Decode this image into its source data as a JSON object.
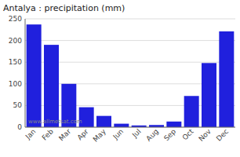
{
  "chart_data": {
    "type": "bar",
    "title": "Antalya : precipitation (mm)",
    "categories": [
      "Jan",
      "Feb",
      "Mar",
      "Apr",
      "May",
      "Jun",
      "Jul",
      "Aug",
      "Sep",
      "Oct",
      "Nov",
      "Dec"
    ],
    "values": [
      237,
      190,
      100,
      46,
      26,
      8,
      4,
      5,
      13,
      72,
      148,
      221
    ],
    "color": "#2020dd",
    "ylim": [
      0,
      250
    ],
    "yticks": [
      0,
      50,
      100,
      150,
      200,
      250
    ],
    "grid": true,
    "annotations": [
      "www.allmetsat.com"
    ]
  }
}
